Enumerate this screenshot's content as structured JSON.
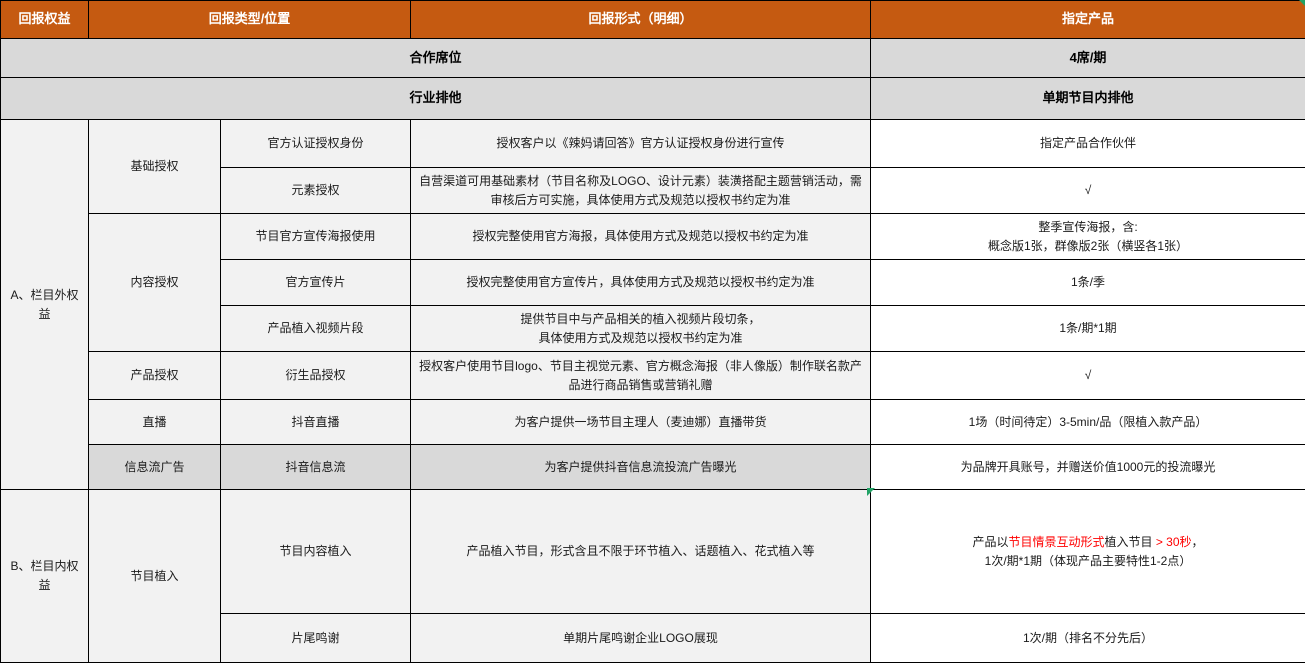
{
  "colors": {
    "header_bg": "#C55A11",
    "header_text": "#FFFFFF",
    "summary_bg": "#D9D9D9",
    "body_bg": "#F2F2F2",
    "product_bg": "#FFFFFF",
    "border": "#000000",
    "highlight_red": "#FF0000",
    "artifact_green": "#21A366"
  },
  "header": {
    "benefit": "回报权益",
    "type_position": "回报类型/位置",
    "form_detail": "回报形式（明细）",
    "product": "指定产品"
  },
  "summary": {
    "seat": {
      "label": "合作席位",
      "value": "4席/期"
    },
    "exclusive": {
      "label": "行业排他",
      "value": "单期节目内排他"
    }
  },
  "sections": {
    "a_label": "A、栏目外权益",
    "b_label": "B、栏目内权益"
  },
  "groups": {
    "basic": "基础授权",
    "content": "内容授权",
    "product_auth": "产品授权",
    "live": "直播",
    "feed": "信息流广告",
    "implant": "节目植入"
  },
  "rows": {
    "official_identity": {
      "pos": "官方认证授权身份",
      "detail": "授权客户以《辣妈请回答》官方认证授权身份进行宣传",
      "product": "指定产品合作伙伴"
    },
    "element_auth": {
      "pos": "元素授权",
      "detail": "自营渠道可用基础素材（节目名称及LOGO、设计元素）装潢搭配主题营销活动，需审核后方可实施，具体使用方式及规范以授权书约定为准",
      "product": "√"
    },
    "poster": {
      "pos": "节目官方宣传海报使用",
      "detail": "授权完整使用官方海报，具体使用方式及规范以授权书约定为准",
      "product_line1": "整季宣传海报，含:",
      "product_line2": "概念版1张，群像版2张（横竖各1张）"
    },
    "promo_film": {
      "pos": "官方宣传片",
      "detail": "授权完整使用官方宣传片，具体使用方式及规范以授权书约定为准",
      "product": "1条/季"
    },
    "video_clip": {
      "pos": "产品植入视频片段",
      "detail_line1": "提供节目中与产品相关的植入视频片段切条，",
      "detail_line2": "具体使用方式及规范以授权书约定为准",
      "product": "1条/期*1期"
    },
    "derivative": {
      "pos": "衍生品授权",
      "detail": "授权客户使用节目logo、节目主视觉元素、官方概念海报（非人像版）制作联名款产品进行商品销售或营销礼赠",
      "product": "√"
    },
    "douyin_live": {
      "pos": "抖音直播",
      "detail": "为客户提供一场节目主理人（麦迪娜）直播带货",
      "product": "1场（时间待定）3-5min/品（限植入款产品）"
    },
    "douyin_feed": {
      "pos": "抖音信息流",
      "detail": "为客户提供抖音信息流投流广告曝光",
      "product": "为品牌开具账号，并赠送价值1000元的投流曝光"
    },
    "content_implant": {
      "pos": "节目内容植入",
      "detail": "产品植入节目，形式含且不限于环节植入、话题植入、花式植入等",
      "product_rich": [
        {
          "text": "产品以",
          "red": false
        },
        {
          "text": "节目情景互动形式",
          "red": true
        },
        {
          "text": "植入节目",
          "red": false
        },
        {
          "text": " > 30秒",
          "red": true
        },
        {
          "text": "，",
          "red": false
        }
      ],
      "product_line2": "1次/期*1期（体现产品主要特性1-2点）"
    },
    "credits": {
      "pos": "片尾鸣谢",
      "detail": "单期片尾鸣谢企业LOGO展现",
      "product": "1次/期（排名不分先后）"
    }
  }
}
